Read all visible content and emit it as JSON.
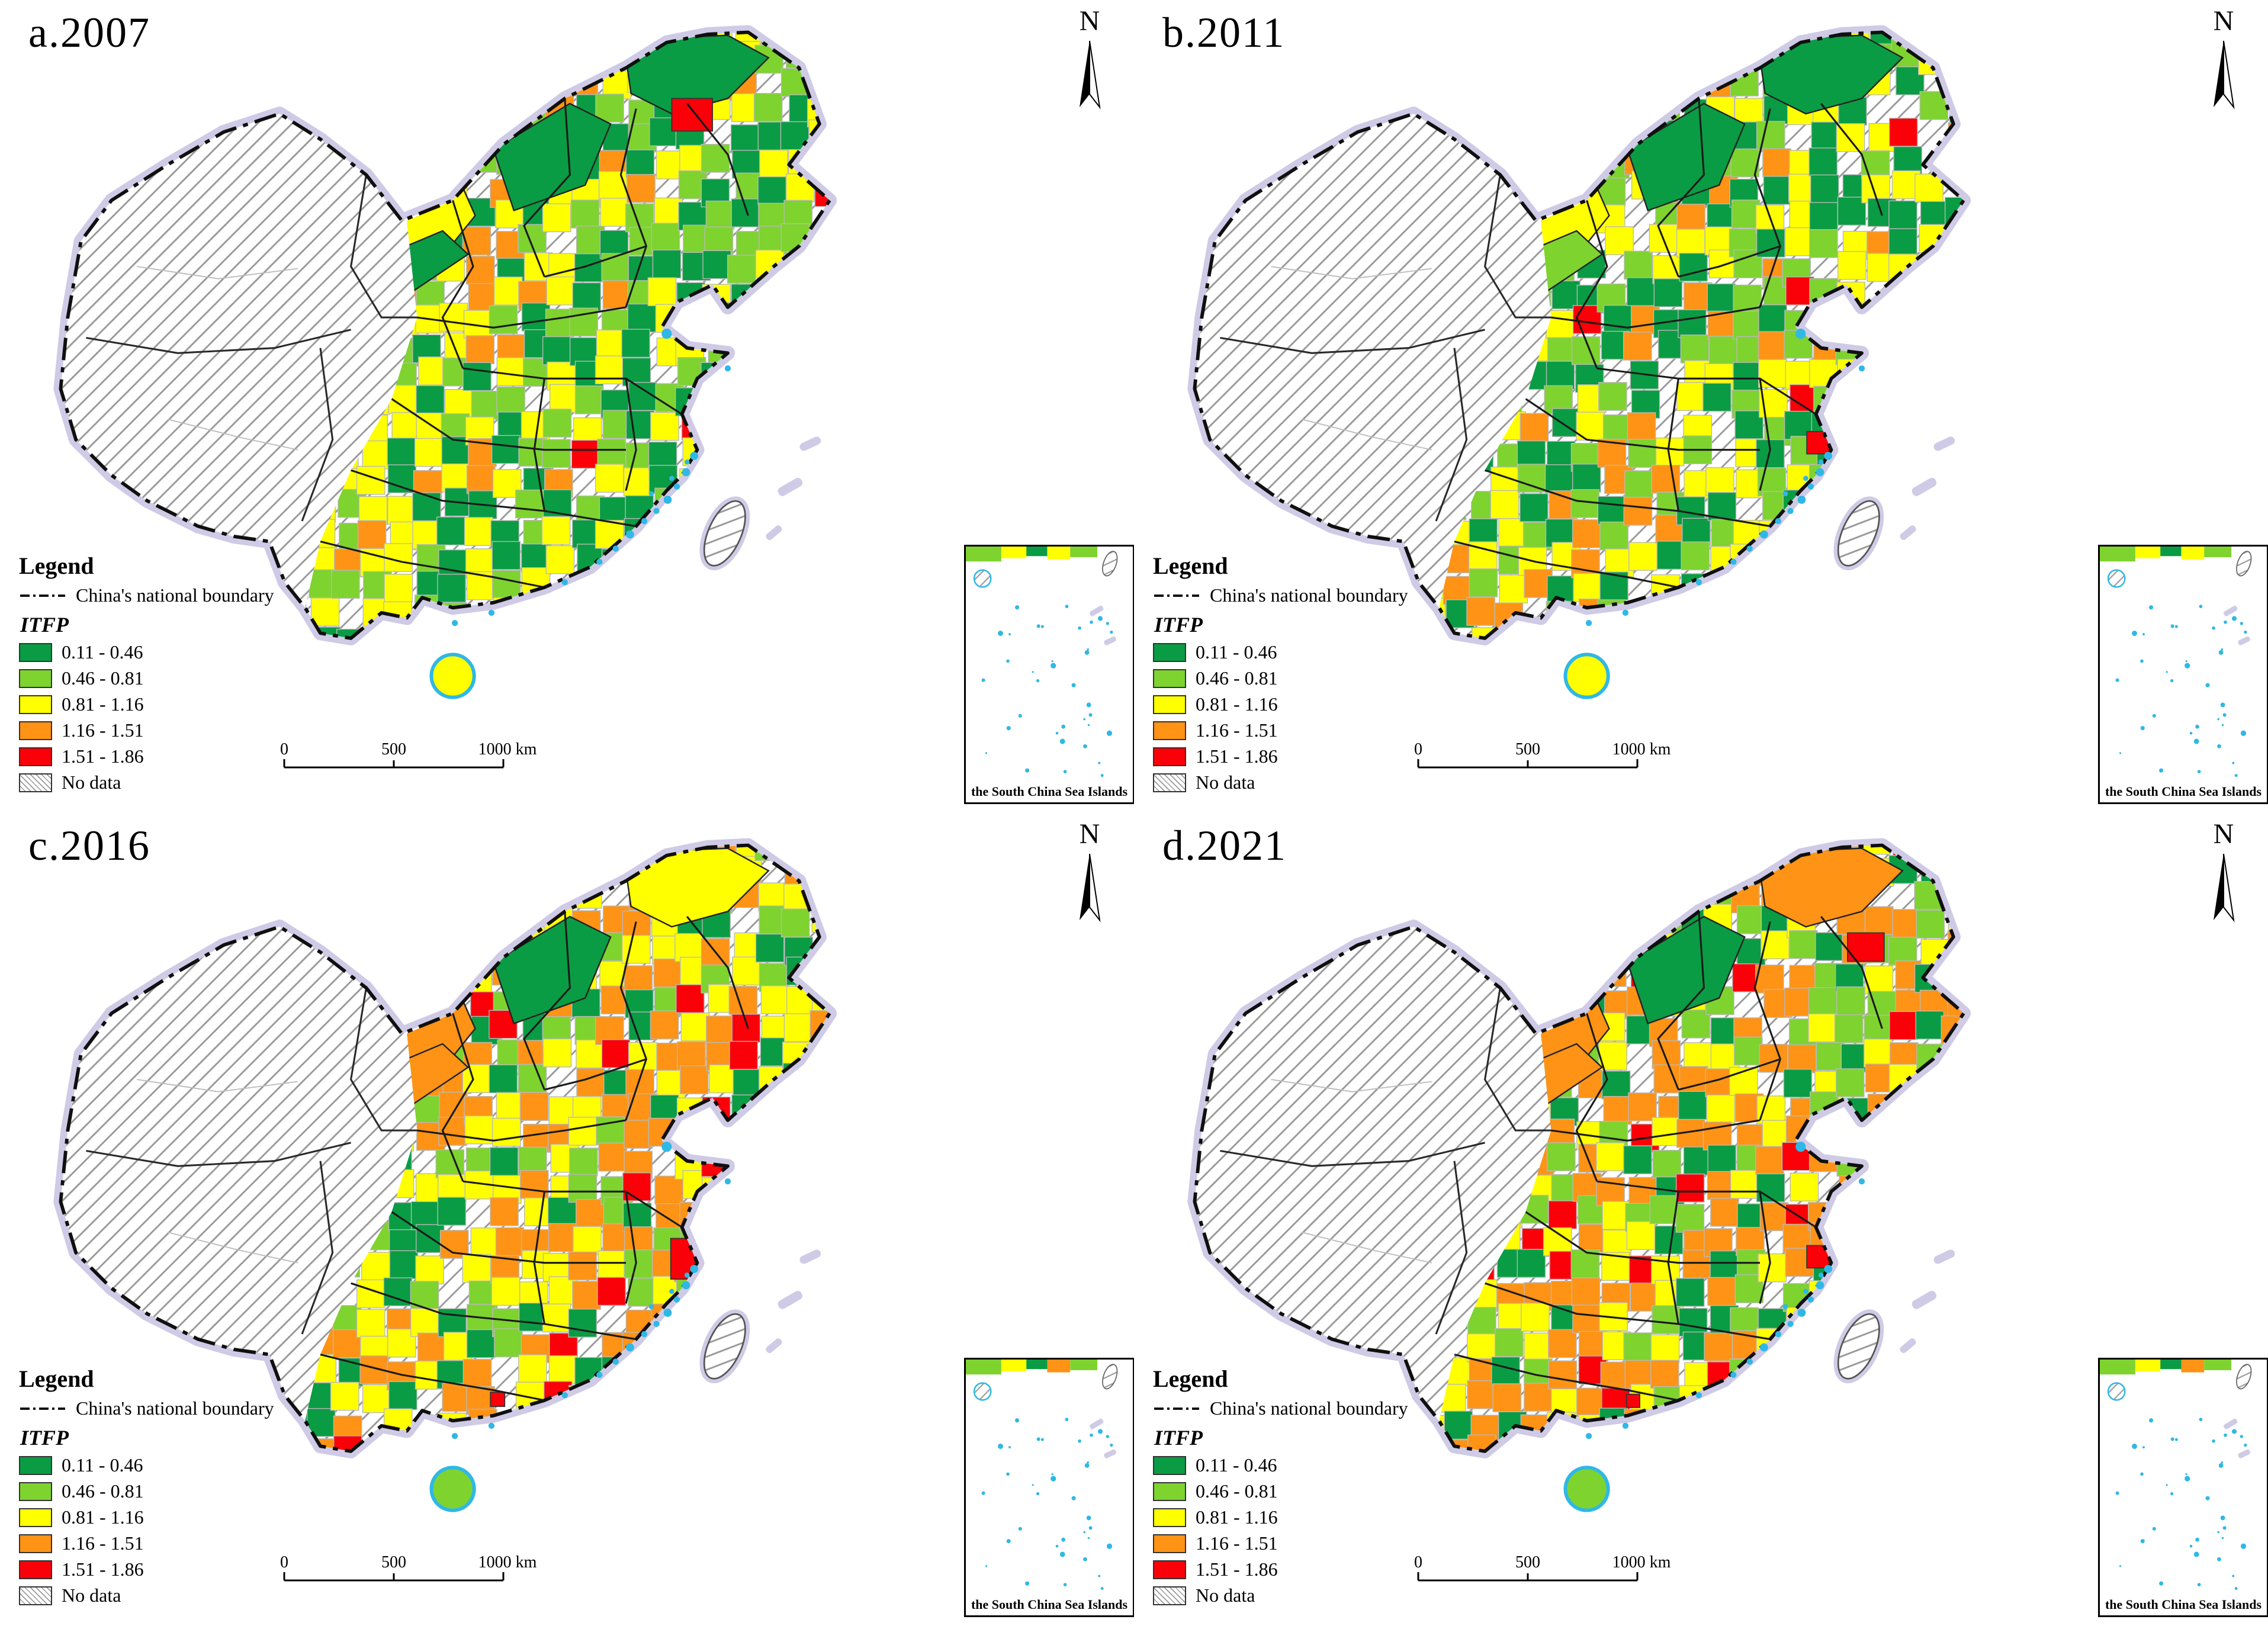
{
  "figure": {
    "description_visible_text_only": ""
  },
  "compass": {
    "label": "N"
  },
  "inset": {
    "label": "the South China Sea Islands"
  },
  "scale_bar": {
    "t0": "0",
    "t1": "500",
    "t2": "1000 km"
  },
  "legend": {
    "title": "Legend",
    "boundary_label": "China's national boundary",
    "field_label": "ITFP",
    "classes": [
      {
        "range": "0.11 - 0.46",
        "color": "#0a9c44"
      },
      {
        "range": "0.46 - 0.81",
        "color": "#7ed32f"
      },
      {
        "range": "0.81 - 1.16",
        "color": "#ffff00"
      },
      {
        "range": "1.16 - 1.51",
        "color": "#ff9315"
      },
      {
        "range": "1.51 - 1.86",
        "color": "#fa0008"
      }
    ],
    "no_data_label": "No data"
  },
  "colors": {
    "water": "#2fb8e6",
    "boundary_buffer": "#cfcbe6",
    "national_boundary": "#101010",
    "no_data_hatch_line": "#9a9a9a"
  },
  "panels": [
    {
      "label": "a.2007",
      "approx_class_share": [
        0.33,
        0.27,
        0.29,
        0.09,
        0.02
      ]
    },
    {
      "label": "b.2011",
      "approx_class_share": [
        0.28,
        0.26,
        0.31,
        0.13,
        0.02
      ]
    },
    {
      "label": "c.2016",
      "approx_class_share": [
        0.17,
        0.18,
        0.3,
        0.31,
        0.04
      ]
    },
    {
      "label": "d.2021",
      "approx_class_share": [
        0.14,
        0.16,
        0.27,
        0.37,
        0.06
      ]
    }
  ]
}
